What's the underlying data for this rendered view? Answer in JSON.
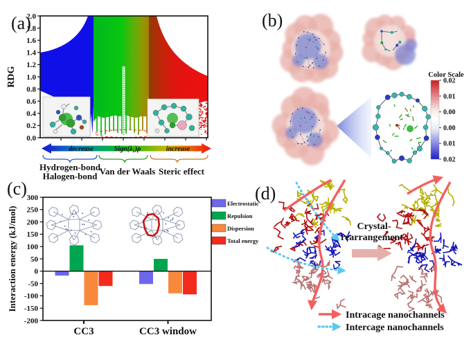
{
  "panels": {
    "a": {
      "label": "(a)"
    },
    "b": {
      "label": "(b)"
    },
    "c": {
      "label": "(c)"
    },
    "d": {
      "label": "(d)"
    }
  },
  "chart_data": [
    {
      "id": "rdg_scatter",
      "type": "scatter",
      "title": "",
      "ylabel": "RDG",
      "ylim": [
        0.0,
        2.0
      ],
      "yticks": [
        "2.0",
        "1.8",
        "1.6",
        "1.4",
        "1.2",
        "1.0",
        "0.8",
        "0.6",
        "0.4",
        "0.2",
        "0.0"
      ],
      "xlabel": "Sign(λ₂)ρ",
      "x_colorbar": {
        "left_label": "decrease",
        "center_label": "Sign(λ₂)ρ",
        "right_label": "increase"
      },
      "region_labels": {
        "left_line1": "Hydrogen-bond",
        "left_line2": "Halogen-bond",
        "center": "Van der Waals",
        "right": "Steric effect"
      },
      "regions": [
        {
          "name": "hydrogen-bond / halogen-bond",
          "color": "#0f10e8",
          "x_sign": "negative"
        },
        {
          "name": "van der Waals",
          "color": "#08c70f",
          "x_sign": "near zero"
        },
        {
          "name": "steric effect",
          "color": "#e01410",
          "x_sign": "positive"
        }
      ]
    },
    {
      "id": "interaction_energy",
      "type": "bar",
      "categories": [
        "CC3",
        "CC3 window"
      ],
      "series": [
        {
          "name": "Electrostatic",
          "color": "#6f66ee",
          "values": [
            -18,
            -52
          ]
        },
        {
          "name": "Repulsion",
          "color": "#00a64f",
          "values": [
            105,
            50
          ]
        },
        {
          "name": "Dispersion",
          "color": "#f8883c",
          "values": [
            -138,
            -90
          ]
        },
        {
          "name": "Total energy",
          "color": "#f42a1d",
          "values": [
            -60,
            -94
          ]
        }
      ],
      "ylabel": "Interaction energy (kJ/mol)",
      "ylim": [
        -200,
        300
      ],
      "yticks": [
        300,
        250,
        200,
        150,
        100,
        50,
        0,
        -50,
        -100,
        -150,
        -200
      ],
      "legend_position": "right"
    }
  ],
  "panel_b": {
    "colorbar": {
      "title": "Color Scale",
      "tick_labels": [
        "0.02",
        "0.01",
        "0.00",
        "0.00",
        "0.01",
        "0.02"
      ],
      "top_color": "#cc1c22",
      "bottom_color": "#2020cc"
    }
  },
  "panel_d": {
    "transition_label_line1": "Crystal-",
    "transition_label_line2": "rearrangement",
    "legend": [
      {
        "label": "Intracage nanochannels",
        "marker": "solid-red-arrow"
      },
      {
        "label": "Intercage nanochannels",
        "marker": "dotted-blue-arrow"
      }
    ]
  }
}
